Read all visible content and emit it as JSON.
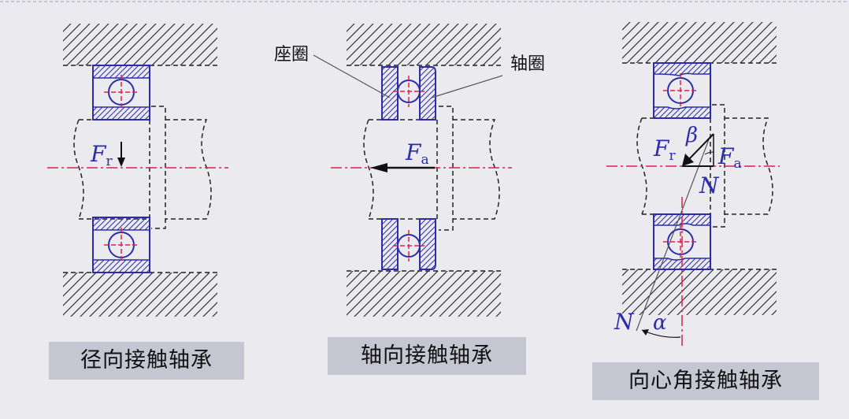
{
  "diagrams": [
    {
      "caption": "径向接触轴承",
      "force": {
        "symbol": "F",
        "subscript": "r"
      }
    },
    {
      "caption": "轴向接触轴承",
      "force": {
        "symbol": "F",
        "subscript": "a"
      },
      "callouts": {
        "seat_ring": "座圈",
        "shaft_ring": "轴圈"
      }
    },
    {
      "caption": "向心角接触轴承",
      "radial_force": {
        "symbol": "F",
        "subscript": "r"
      },
      "axial_force": {
        "symbol": "F",
        "subscript": "a"
      },
      "beta": "β",
      "normal_upper": "N",
      "normal_lower": "N",
      "alpha": "α"
    }
  ],
  "colors": {
    "outline": "#1a1a1a",
    "bearing": "#2c2ca8",
    "centerline": "#e0204a",
    "caption_bg": "#c6c6d2"
  }
}
